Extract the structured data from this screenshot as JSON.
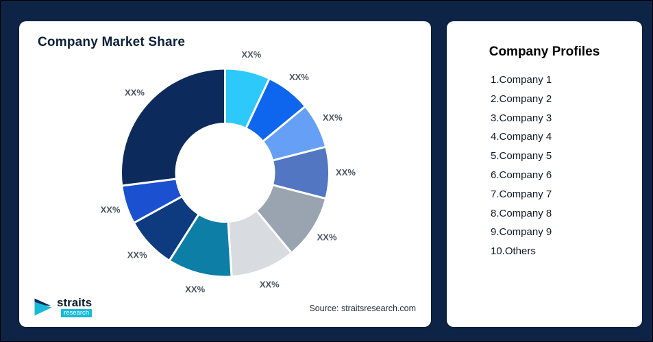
{
  "page": {
    "background": "#0e2447"
  },
  "chart": {
    "title": "Company Market Share",
    "source": "Source: straitsresearch.com"
  },
  "chart_data": {
    "type": "pie",
    "subtype": "donut",
    "title": "Company Market Share",
    "labels": [
      "XX%",
      "XX%",
      "XX%",
      "XX%",
      "XX%",
      "XX%",
      "XX%",
      "XX%",
      "XX%",
      "XX%"
    ],
    "values": [
      7,
      7,
      7,
      8,
      10,
      10,
      10,
      8,
      6,
      27
    ],
    "colors": [
      "#2ec9fb",
      "#0f66ee",
      "#66a0f6",
      "#5276c2",
      "#9aa3b0",
      "#d8dce1",
      "#0d7fa6",
      "#0e3a80",
      "#1b50d0",
      "#0c2a5c"
    ],
    "start_angle_deg": 0,
    "direction": "clockwise",
    "inner_radius_ratio": 0.47,
    "slice_stroke": "#ffffff",
    "legend": "none"
  },
  "profiles": {
    "title": "Company Profiles",
    "items": [
      "1.Company 1",
      "2.Company 2",
      "3.Company 3",
      "4.Company 4",
      "5.Company 5",
      "6.Company 6",
      "7.Company 7",
      "8.Company 8",
      "9.Company 9",
      "10.Others"
    ]
  },
  "logo": {
    "name": "straits",
    "sub": "research"
  }
}
